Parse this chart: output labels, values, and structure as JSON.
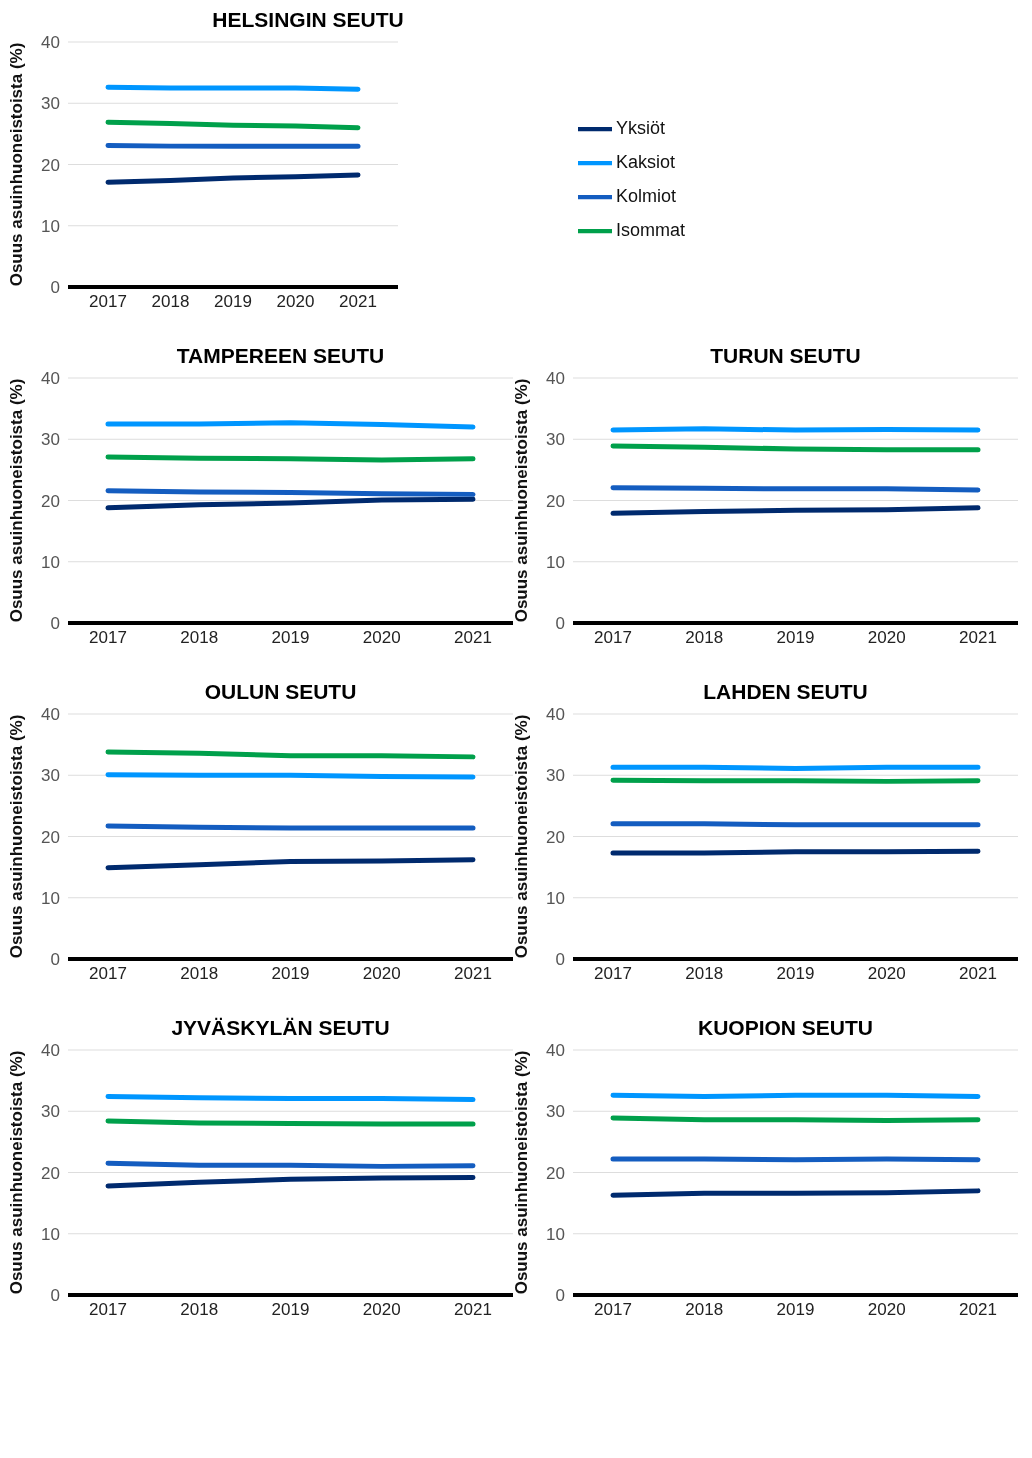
{
  "chart_data": [
    {
      "type": "line",
      "title": "HELSINGIN SEUTU",
      "ylabel": "Osuus asuinhuoneistoista (%)",
      "categories": [
        "2017",
        "2018",
        "2019",
        "2020",
        "2021"
      ],
      "ylim": [
        0,
        40
      ],
      "yticks": [
        0,
        10,
        20,
        30,
        40
      ],
      "grid": "y",
      "legend": "right",
      "marker": "none",
      "line_style": "solid",
      "series": [
        {
          "name": "Yksiöt",
          "color": "#002a6e",
          "values": [
            17.1,
            17.4,
            17.8,
            18.0,
            18.3
          ]
        },
        {
          "name": "Kaksiot",
          "color": "#0096ff",
          "values": [
            32.6,
            32.5,
            32.5,
            32.5,
            32.3
          ]
        },
        {
          "name": "Kolmiot",
          "color": "#145dc0",
          "values": [
            23.1,
            23.0,
            23.0,
            23.0,
            23.0
          ]
        },
        {
          "name": "Isommat",
          "color": "#00a04b",
          "values": [
            26.9,
            26.7,
            26.4,
            26.3,
            26.0
          ]
        }
      ]
    },
    {
      "type": "line",
      "title": "TAMPEREEN SEUTU",
      "ylabel": "Osuus asuinhuoneistoista (%)",
      "categories": [
        "2017",
        "2018",
        "2019",
        "2020",
        "2021"
      ],
      "ylim": [
        0,
        40
      ],
      "yticks": [
        0,
        10,
        20,
        30,
        40
      ],
      "grid": "y",
      "marker": "none",
      "line_style": "solid",
      "series": [
        {
          "color": "#002a6e",
          "values": [
            18.8,
            19.3,
            19.6,
            20.1,
            20.2
          ]
        },
        {
          "color": "#0096ff",
          "values": [
            32.5,
            32.5,
            32.7,
            32.4,
            32.0
          ]
        },
        {
          "color": "#145dc0",
          "values": [
            21.6,
            21.4,
            21.3,
            21.1,
            21.0
          ]
        },
        {
          "color": "#00a04b",
          "values": [
            27.1,
            26.9,
            26.8,
            26.6,
            26.8
          ]
        }
      ]
    },
    {
      "type": "line",
      "title": "TURUN SEUTU",
      "ylabel": "Osuus asuinhuoneistoista (%)",
      "categories": [
        "2017",
        "2018",
        "2019",
        "2020",
        "2021"
      ],
      "ylim": [
        0,
        40
      ],
      "yticks": [
        0,
        10,
        20,
        30,
        40
      ],
      "grid": "y",
      "marker": "none",
      "line_style": "solid",
      "series": [
        {
          "color": "#002a6e",
          "values": [
            17.9,
            18.2,
            18.4,
            18.5,
            18.8
          ]
        },
        {
          "color": "#0096ff",
          "values": [
            31.5,
            31.7,
            31.5,
            31.6,
            31.5
          ]
        },
        {
          "color": "#145dc0",
          "values": [
            22.1,
            22.0,
            21.9,
            21.9,
            21.7
          ]
        },
        {
          "color": "#00a04b",
          "values": [
            28.9,
            28.7,
            28.4,
            28.3,
            28.3
          ]
        }
      ]
    },
    {
      "type": "line",
      "title": "OULUN SEUTU",
      "ylabel": "Osuus asuinhuoneistoista (%)",
      "categories": [
        "2017",
        "2018",
        "2019",
        "2020",
        "2021"
      ],
      "ylim": [
        0,
        40
      ],
      "yticks": [
        0,
        10,
        20,
        30,
        40
      ],
      "grid": "y",
      "marker": "none",
      "line_style": "solid",
      "series": [
        {
          "color": "#002a6e",
          "values": [
            14.9,
            15.4,
            15.9,
            16.0,
            16.2
          ]
        },
        {
          "color": "#0096ff",
          "values": [
            30.1,
            30.0,
            30.0,
            29.8,
            29.7
          ]
        },
        {
          "color": "#145dc0",
          "values": [
            21.7,
            21.5,
            21.4,
            21.4,
            21.4
          ]
        },
        {
          "color": "#00a04b",
          "values": [
            33.8,
            33.6,
            33.2,
            33.2,
            33.0
          ]
        }
      ]
    },
    {
      "type": "line",
      "title": "LAHDEN SEUTU",
      "ylabel": "Osuus asuinhuoneistoista (%)",
      "categories": [
        "2017",
        "2018",
        "2019",
        "2020",
        "2021"
      ],
      "ylim": [
        0,
        40
      ],
      "yticks": [
        0,
        10,
        20,
        30,
        40
      ],
      "grid": "y",
      "marker": "none",
      "line_style": "solid",
      "series": [
        {
          "color": "#002a6e",
          "values": [
            17.3,
            17.3,
            17.5,
            17.5,
            17.6
          ]
        },
        {
          "color": "#0096ff",
          "values": [
            31.3,
            31.3,
            31.1,
            31.3,
            31.3
          ]
        },
        {
          "color": "#145dc0",
          "values": [
            22.1,
            22.1,
            21.9,
            21.9,
            21.9
          ]
        },
        {
          "color": "#00a04b",
          "values": [
            29.2,
            29.1,
            29.1,
            29.0,
            29.1
          ]
        }
      ]
    },
    {
      "type": "line",
      "title": "JYVÄSKYLÄN SEUTU",
      "ylabel": "Osuus asuinhuoneistoista (%)",
      "categories": [
        "2017",
        "2018",
        "2019",
        "2020",
        "2021"
      ],
      "ylim": [
        0,
        40
      ],
      "yticks": [
        0,
        10,
        20,
        30,
        40
      ],
      "grid": "y",
      "marker": "none",
      "line_style": "solid",
      "series": [
        {
          "color": "#002a6e",
          "values": [
            17.8,
            18.4,
            18.9,
            19.1,
            19.2
          ]
        },
        {
          "color": "#0096ff",
          "values": [
            32.4,
            32.2,
            32.1,
            32.1,
            31.9
          ]
        },
        {
          "color": "#145dc0",
          "values": [
            21.5,
            21.2,
            21.2,
            21.0,
            21.1
          ]
        },
        {
          "color": "#00a04b",
          "values": [
            28.4,
            28.1,
            28.0,
            27.9,
            27.9
          ]
        }
      ]
    },
    {
      "type": "line",
      "title": "KUOPION SEUTU",
      "ylabel": "Osuus asuinhuoneistoista (%)",
      "categories": [
        "2017",
        "2018",
        "2019",
        "2020",
        "2021"
      ],
      "ylim": [
        0,
        40
      ],
      "yticks": [
        0,
        10,
        20,
        30,
        40
      ],
      "grid": "y",
      "marker": "none",
      "line_style": "solid",
      "series": [
        {
          "color": "#002a6e",
          "values": [
            16.3,
            16.6,
            16.6,
            16.7,
            17.0
          ]
        },
        {
          "color": "#0096ff",
          "values": [
            32.6,
            32.4,
            32.6,
            32.6,
            32.4
          ]
        },
        {
          "color": "#145dc0",
          "values": [
            22.2,
            22.2,
            22.1,
            22.2,
            22.1
          ]
        },
        {
          "color": "#00a04b",
          "values": [
            28.9,
            28.6,
            28.6,
            28.5,
            28.6
          ]
        }
      ]
    }
  ]
}
